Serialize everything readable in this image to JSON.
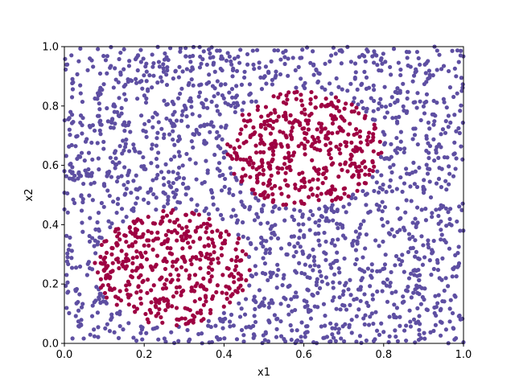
{
  "chart_data": {
    "type": "scatter",
    "title": "",
    "xlabel": "x1",
    "ylabel": "x2",
    "xlim": [
      0,
      1
    ],
    "ylim": [
      0,
      1
    ],
    "xticks": [
      "0.0",
      "0.2",
      "0.4",
      "0.6",
      "0.8",
      "1.0"
    ],
    "yticks": [
      "0.0",
      "0.2",
      "0.4",
      "0.6",
      "0.8",
      "1.0"
    ],
    "grid": false,
    "legend": "none",
    "series": [
      {
        "color": "#5e4fa2",
        "description": "uniform points outside both circles",
        "n_points": 1700
      },
      {
        "color": "#9e0142",
        "description": "points inside two circular clusters",
        "regions": [
          {
            "center": [
              0.27,
              0.255
            ],
            "radius": 0.195
          },
          {
            "center": [
              0.6,
              0.655
            ],
            "radius": 0.195
          }
        ],
        "n_points": 850
      }
    ]
  }
}
